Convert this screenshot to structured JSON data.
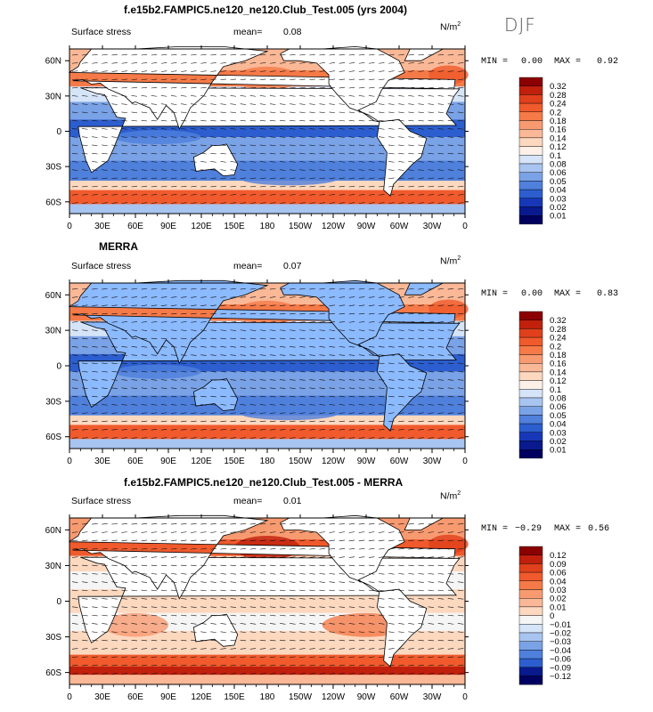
{
  "season_label": "DJF",
  "chart_data": [
    {
      "type": "heatmap",
      "title": "f.e15b2.FAMPIC5.ne120_ne120.Club_Test.005 (yrs 2004)",
      "left_label": "Surface stress",
      "mean_label": "mean=",
      "mean_value": "0.08",
      "units": "N/m",
      "units_exp": "2",
      "min_label": "MIN =",
      "min_value": "0.00",
      "max_label": "MAX =",
      "max_value": "0.92",
      "x_ticks": [
        "0",
        "30E",
        "60E",
        "90E",
        "120E",
        "150E",
        "180",
        "150W",
        "120W",
        "90W",
        "60W",
        "30W",
        "0"
      ],
      "y_ticks": [
        "60N",
        "30N",
        "0",
        "30S",
        "60S"
      ],
      "y_values": [
        60,
        30,
        0,
        -30,
        -60
      ],
      "ylim": [
        -70,
        70
      ],
      "colorbar_levels": [
        "0.32",
        "0.28",
        "0.24",
        "0.2",
        "0.18",
        "0.16",
        "0.14",
        "0.12",
        "0.1",
        "0.08",
        "0.06",
        "0.05",
        "0.04",
        "0.03",
        "0.02",
        "0.01"
      ],
      "colorbar_colors": [
        "#8b0000",
        "#c0200c",
        "#e0401c",
        "#f05a2c",
        "#f57a48",
        "#f89a70",
        "#fab896",
        "#fcd8bf",
        "#fdf0e6",
        "#d6e4f8",
        "#a8c4f0",
        "#7aa2e6",
        "#4f80dc",
        "#2c5ecf",
        "#1638b8",
        "#081a8e",
        "#000060"
      ]
    },
    {
      "type": "heatmap",
      "title": "MERRA",
      "left_label": "Surface stress",
      "mean_label": "mean=",
      "mean_value": "0.07",
      "units": "N/m",
      "units_exp": "2",
      "min_label": "MIN =",
      "min_value": "0.00",
      "max_label": "MAX =",
      "max_value": "0.83",
      "x_ticks": [
        "0",
        "30E",
        "60E",
        "90E",
        "120E",
        "150E",
        "180",
        "150W",
        "120W",
        "90W",
        "60W",
        "30W",
        "0"
      ],
      "y_ticks": [
        "60N",
        "30N",
        "0",
        "30S",
        "60S"
      ],
      "y_values": [
        60,
        30,
        0,
        -30,
        -60
      ],
      "ylim": [
        -70,
        70
      ],
      "colorbar_levels": [
        "0.32",
        "0.28",
        "0.24",
        "0.2",
        "0.18",
        "0.16",
        "0.14",
        "0.12",
        "0.1",
        "0.08",
        "0.06",
        "0.05",
        "0.04",
        "0.03",
        "0.02",
        "0.01"
      ],
      "colorbar_colors": [
        "#8b0000",
        "#c0200c",
        "#e0401c",
        "#f05a2c",
        "#f57a48",
        "#f89a70",
        "#fab896",
        "#fcd8bf",
        "#fdf0e6",
        "#d6e4f8",
        "#a8c4f0",
        "#7aa2e6",
        "#4f80dc",
        "#2c5ecf",
        "#1638b8",
        "#081a8e",
        "#000060"
      ]
    },
    {
      "type": "heatmap",
      "title": "f.e15b2.FAMPIC5.ne120_ne120.Club_Test.005 - MERRA",
      "left_label": "Surface stress",
      "mean_label": "mean=",
      "mean_value": "0.01",
      "units": "N/m",
      "units_exp": "2",
      "min_label": "MIN =",
      "min_value": "−0.29",
      "max_label": "MAX =",
      "max_value": "0.56",
      "x_ticks": [
        "0",
        "30E",
        "60E",
        "90E",
        "120E",
        "150E",
        "180",
        "150W",
        "120W",
        "90W",
        "60W",
        "30W",
        "0"
      ],
      "y_ticks": [
        "60N",
        "30N",
        "0",
        "30S",
        "60S"
      ],
      "y_values": [
        60,
        30,
        0,
        -30,
        -60
      ],
      "ylim": [
        -70,
        70
      ],
      "colorbar_levels": [
        "0.12",
        "0.09",
        "0.06",
        "0.04",
        "0.03",
        "0.02",
        "0.01",
        "0",
        "−0.01",
        "−0.02",
        "−0.03",
        "−0.04",
        "−0.06",
        "−0.09",
        "−0.12"
      ],
      "colorbar_colors": [
        "#8b0000",
        "#c0200c",
        "#e0401c",
        "#f05a2c",
        "#f57a48",
        "#f89a70",
        "#fab896",
        "#fcd8bf",
        "#f5f5f5",
        "#d6e4f8",
        "#a8c4f0",
        "#7aa2e6",
        "#4f80dc",
        "#2c5ecf",
        "#081a8e",
        "#000060"
      ]
    }
  ]
}
